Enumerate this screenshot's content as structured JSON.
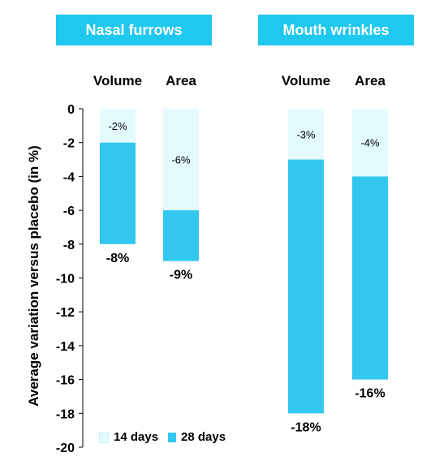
{
  "chart_data": {
    "type": "bar",
    "ylabel": "Average variation versus placebo (in %)",
    "ylim": [
      -20,
      0
    ],
    "yticks": [
      0,
      -2,
      -4,
      -6,
      -8,
      -10,
      -12,
      -14,
      -16,
      -18,
      -20
    ],
    "groups": [
      {
        "title": "Nasal furrows",
        "categories": [
          "Volume",
          "Area"
        ]
      },
      {
        "title": "Mouth wrinkles",
        "categories": [
          "Volume",
          "Area"
        ]
      }
    ],
    "categories": [
      "Volume",
      "Area",
      "Volume",
      "Area"
    ],
    "series": [
      {
        "name": "14 days",
        "values": [
          -2,
          -6,
          -3,
          -4
        ],
        "labels": [
          "-2%",
          "-6%",
          "-3%",
          "-4%"
        ],
        "color": "#e4fbfe"
      },
      {
        "name": "28 days",
        "values": [
          -8,
          -9,
          -18,
          -16
        ],
        "labels": [
          "-8%",
          "-9%",
          "-18%",
          "-16%"
        ],
        "color": "#33c7f0"
      }
    ]
  }
}
